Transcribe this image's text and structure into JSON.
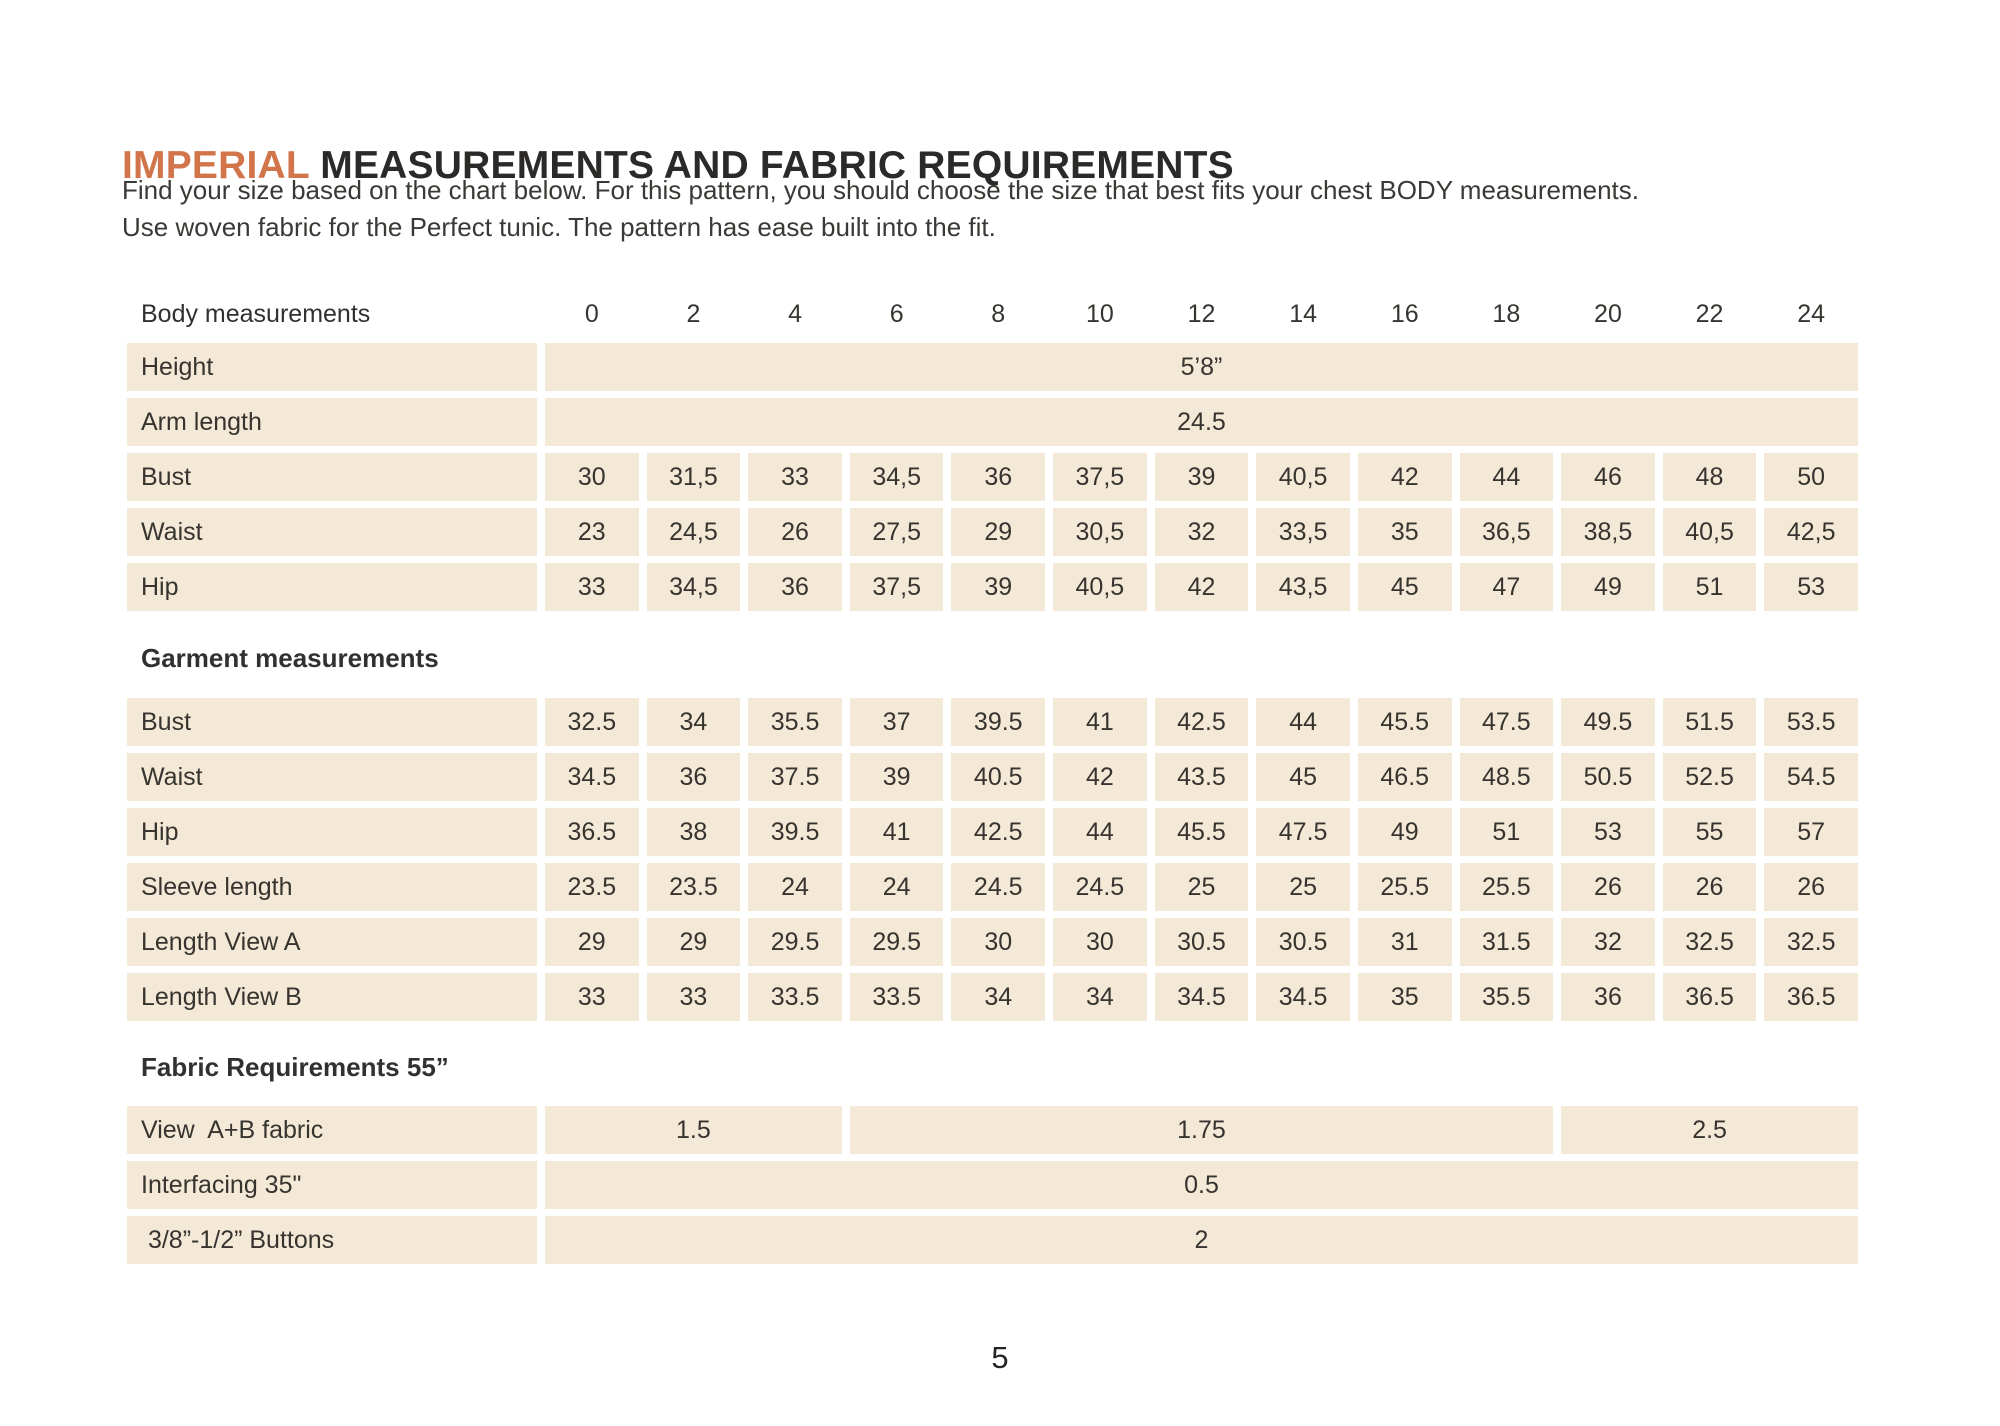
{
  "page": {
    "title_highlight": "IMPERIAL",
    "title_rest": " MEASUREMENTS AND FABRIC REQUIREMENTS",
    "intro_line1": "Find your size based on the chart below. For this pattern, you should choose the size that best fits your chest BODY measurements.",
    "intro_line2": "Use woven fabric for the Perfect tunic. The pattern has ease built into the fit.",
    "page_number": "5"
  },
  "colors": {
    "accent_orange": "#d2754a",
    "row_beige": "#f3e9d6",
    "text_ink": "#373430"
  },
  "table": {
    "header_label": "Body measurements",
    "sizes": [
      "0",
      "2",
      "4",
      "6",
      "8",
      "10",
      "12",
      "14",
      "16",
      "18",
      "20",
      "22",
      "24"
    ],
    "sections": [
      {
        "rows": [
          {
            "label": "Height",
            "spans": [
              {
                "span": 13,
                "value": "5’8”"
              }
            ]
          },
          {
            "label": "Arm length",
            "spans": [
              {
                "span": 13,
                "value": "24.5"
              }
            ]
          },
          {
            "label": "Bust",
            "values": [
              "30",
              "31,5",
              "33",
              "34,5",
              "36",
              "37,5",
              "39",
              "40,5",
              "42",
              "44",
              "46",
              "48",
              "50"
            ]
          },
          {
            "label": "Waist",
            "values": [
              "23",
              "24,5",
              "26",
              "27,5",
              "29",
              "30,5",
              "32",
              "33,5",
              "35",
              "36,5",
              "38,5",
              "40,5",
              "42,5"
            ]
          },
          {
            "label": "Hip",
            "values": [
              "33",
              "34,5",
              "36",
              "37,5",
              "39",
              "40,5",
              "42",
              "43,5",
              "45",
              "47",
              "49",
              "51",
              "53"
            ]
          }
        ]
      },
      {
        "title": "Garment measurements",
        "rows": [
          {
            "label": "Bust",
            "values": [
              "32.5",
              "34",
              "35.5",
              "37",
              "39.5",
              "41",
              "42.5",
              "44",
              "45.5",
              "47.5",
              "49.5",
              "51.5",
              "53.5"
            ]
          },
          {
            "label": "Waist",
            "values": [
              "34.5",
              "36",
              "37.5",
              "39",
              "40.5",
              "42",
              "43.5",
              "45",
              "46.5",
              "48.5",
              "50.5",
              "52.5",
              "54.5"
            ]
          },
          {
            "label": "Hip",
            "values": [
              "36.5",
              "38",
              "39.5",
              "41",
              "42.5",
              "44",
              "45.5",
              "47.5",
              "49",
              "51",
              "53",
              "55",
              "57"
            ]
          },
          {
            "label": "Sleeve length",
            "values": [
              "23.5",
              "23.5",
              "24",
              "24",
              "24.5",
              "24.5",
              "25",
              "25",
              "25.5",
              "25.5",
              "26",
              "26",
              "26"
            ]
          },
          {
            "label": "Length View A",
            "values": [
              "29",
              "29",
              "29.5",
              "29.5",
              "30",
              "30",
              "30.5",
              "30.5",
              "31",
              "31.5",
              "32",
              "32.5",
              "32.5"
            ]
          },
          {
            "label": "Length View B",
            "values": [
              "33",
              "33",
              "33.5",
              "33.5",
              "34",
              "34",
              "34.5",
              "34.5",
              "35",
              "35.5",
              "36",
              "36.5",
              "36.5"
            ]
          }
        ]
      },
      {
        "title": "Fabric Requirements 55”",
        "rows": [
          {
            "label": "View  A+B fabric",
            "spans": [
              {
                "span": 3,
                "value": "1.5"
              },
              {
                "span": 7,
                "value": "1.75"
              },
              {
                "span": 3,
                "value": "2.5"
              }
            ]
          },
          {
            "label": "Interfacing 35\"",
            "spans": [
              {
                "span": 13,
                "value": "0.5"
              }
            ]
          },
          {
            "label": " 3/8”-1/2” Buttons",
            "spans": [
              {
                "span": 13,
                "value": "2"
              }
            ]
          }
        ]
      }
    ]
  }
}
